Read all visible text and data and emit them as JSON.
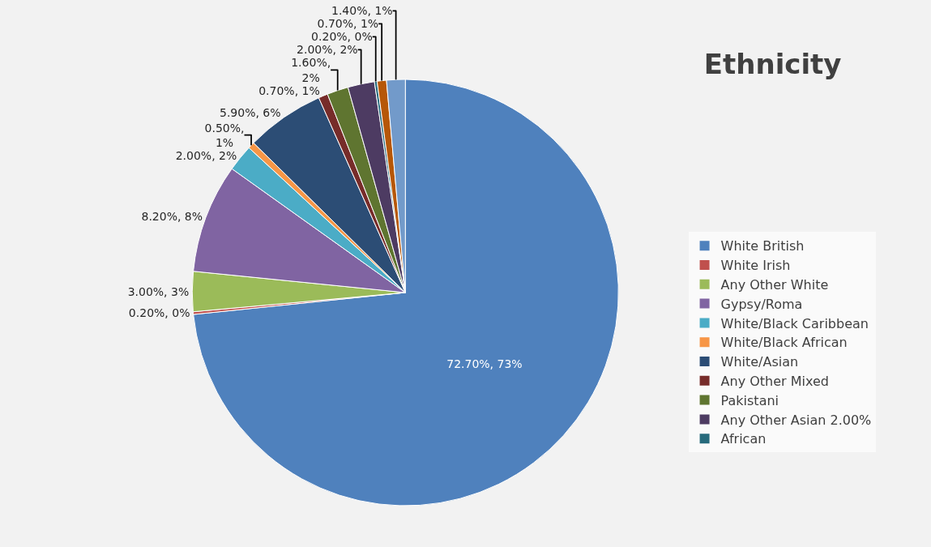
{
  "chart_data": {
    "type": "pie",
    "title": "Ethnicity",
    "categories": [
      "White British",
      "White Irish",
      "Any Other White",
      "Gypsy/Roma",
      "White/Black Caribbean",
      "White/Black African",
      "White/Asian",
      "Any Other Mixed",
      "Pakistani",
      "Any Other Asian 2.00%",
      "African",
      null,
      null
    ],
    "values": [
      72.7,
      0.2,
      3.0,
      8.2,
      2.0,
      0.5,
      5.9,
      0.7,
      1.6,
      2.0,
      0.2,
      0.7,
      1.4
    ],
    "value_labels": [
      "72.70%, 73%",
      "0.20%, 0%",
      "3.00%, 3%",
      "8.20%, 8%",
      "2.00%, 2%",
      "0.50%,\n1%",
      "5.90%, 6%",
      "0.70%, 1%",
      "1.60%,\n2%",
      "2.00%, 2%",
      "0.20%, 0%",
      "0.70%, 1%",
      "1.40%, 1%"
    ],
    "colors": [
      "#4f81bd",
      "#c0504d",
      "#9bbb59",
      "#8064a2",
      "#4bacc6",
      "#f79646",
      "#2c4d75",
      "#772c2a",
      "#5f7530",
      "#4d3b62",
      "#276a7c",
      "#b65708",
      "#729aca"
    ],
    "legend": "right"
  }
}
